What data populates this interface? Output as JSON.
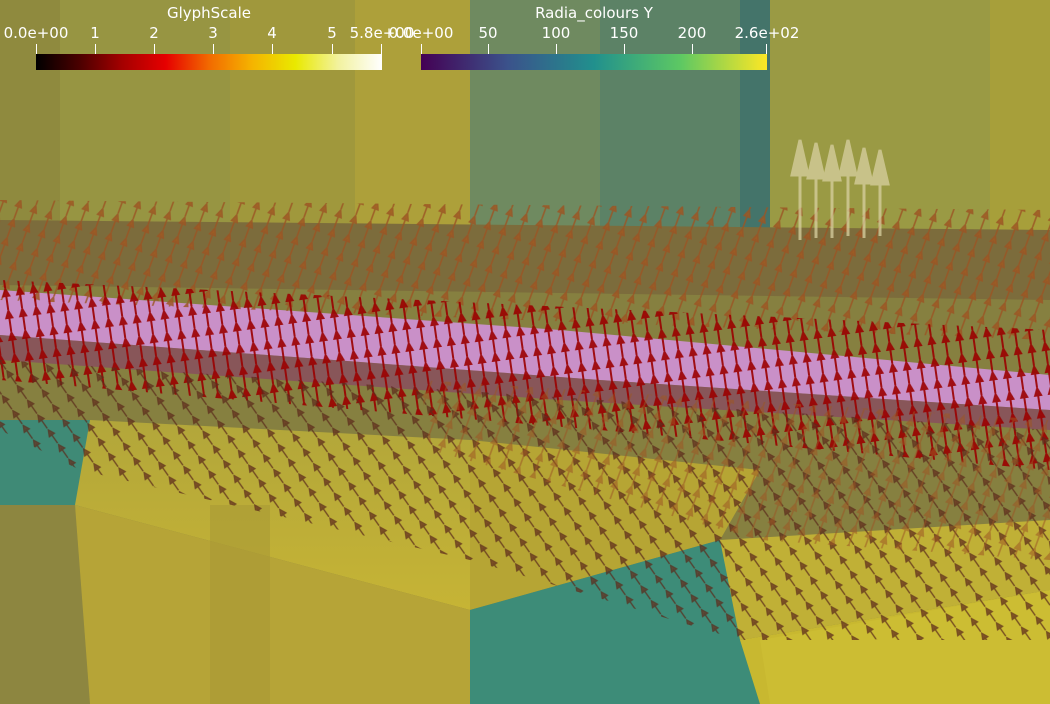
{
  "colorbars": [
    {
      "name": "glyphscale",
      "title": "GlyphScale",
      "ticks": [
        "0.0e+00",
        "1",
        "2",
        "3",
        "4",
        "5",
        "5.8e+00"
      ],
      "colormap": [
        "#000000",
        "#4a0000",
        "#a50000",
        "#e60000",
        "#f26a00",
        "#f5b400",
        "#e9e900",
        "#f2f2a0",
        "#ffffff"
      ]
    },
    {
      "name": "radia-colours-y",
      "title": "Radia_colours Y",
      "ticks": [
        "0.0e+00",
        "50",
        "100",
        "150",
        "200",
        "2.6e+02"
      ],
      "colormap": [
        "#440154",
        "#3b528b",
        "#21908d",
        "#5dc863",
        "#fde725"
      ]
    }
  ],
  "scene": {
    "description_colors": {
      "slab_yellow": "#c5b335",
      "slab_teal": "#3e8a72",
      "magnet_pink": "#c990c8",
      "glyph_red": "#b00000",
      "glyph_orange": "#c86a20",
      "glyph_dark": "#3a1010"
    }
  }
}
